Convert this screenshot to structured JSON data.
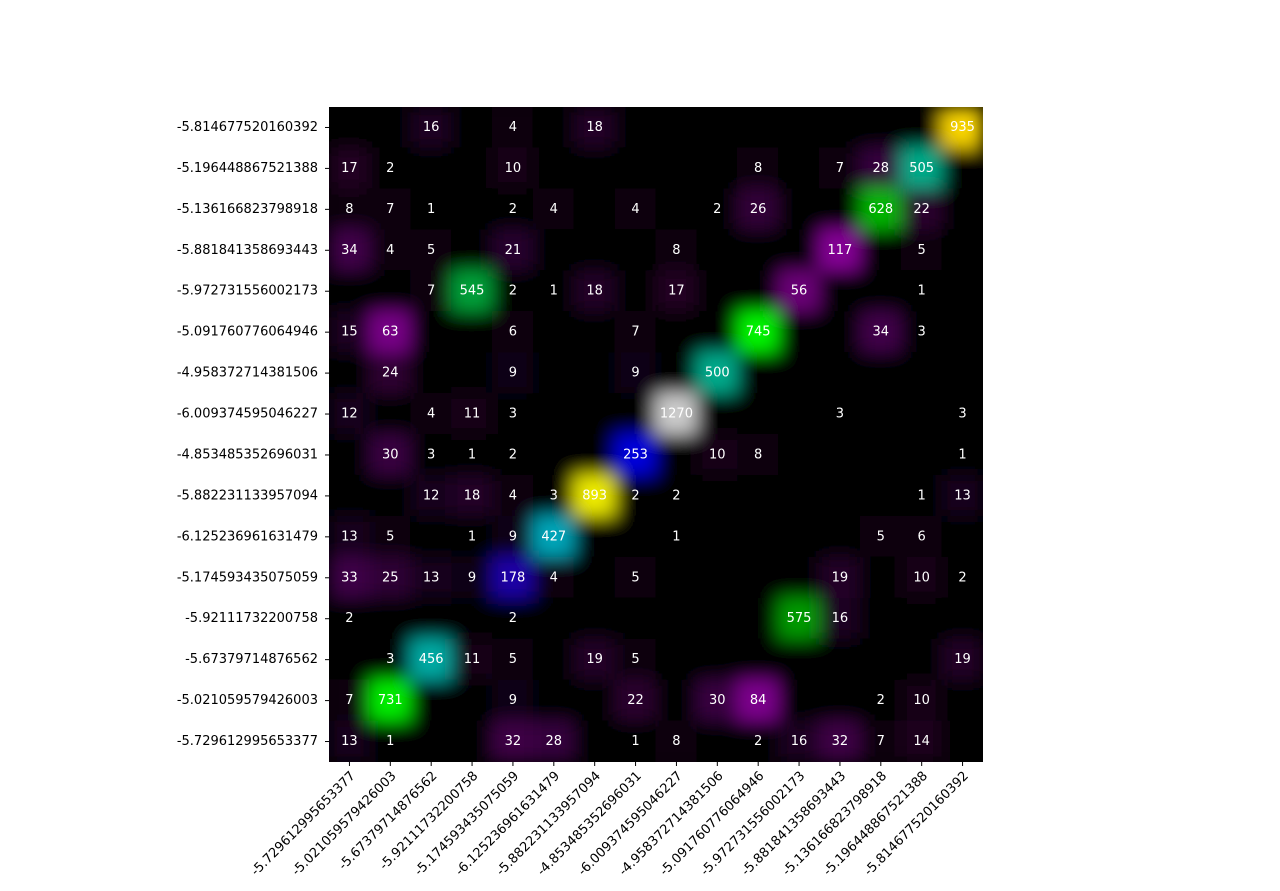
{
  "chart_data": {
    "type": "heatmap",
    "colormap": "nipy_spectral",
    "annotate_nonzero": true,
    "x": [
      "-5.729612995653377",
      "-5.021059579426003",
      "-5.67379714876562",
      "-5.92111732200758",
      "-5.174593435075059",
      "-6.125236961631479",
      "-5.882231133957094",
      "-4.853485352696031",
      "-6.009374595046227",
      "-4.958372714381506",
      "-5.091760776064946",
      "-5.972731556002173",
      "-5.881841358693443",
      "-5.136166823798918",
      "-5.196448867521388",
      "-5.814677520160392"
    ],
    "y": [
      "-5.814677520160392",
      "-5.196448867521388",
      "-5.136166823798918",
      "-5.881841358693443",
      "-5.972731556002173",
      "-5.091760776064946",
      "-4.958372714381506",
      "-6.009374595046227",
      "-4.853485352696031",
      "-5.882231133957094",
      "-6.125236961631479",
      "-5.174593435075059",
      "-5.92111732200758",
      "-5.67379714876562",
      "-5.021059579426003",
      "-5.729612995653377"
    ],
    "values": [
      [
        0,
        0,
        16,
        0,
        4,
        0,
        18,
        0,
        0,
        0,
        0,
        0,
        0,
        0,
        0,
        935
      ],
      [
        17,
        2,
        0,
        0,
        10,
        0,
        0,
        0,
        0,
        0,
        8,
        0,
        7,
        28,
        505,
        0
      ],
      [
        8,
        7,
        1,
        0,
        2,
        4,
        0,
        4,
        0,
        2,
        26,
        0,
        0,
        628,
        22,
        0
      ],
      [
        34,
        4,
        5,
        0,
        21,
        0,
        0,
        0,
        8,
        0,
        0,
        0,
        117,
        0,
        5,
        0
      ],
      [
        0,
        0,
        7,
        545,
        2,
        1,
        18,
        0,
        17,
        0,
        0,
        56,
        0,
        0,
        1,
        0
      ],
      [
        15,
        63,
        0,
        0,
        6,
        0,
        0,
        7,
        0,
        0,
        745,
        0,
        0,
        34,
        3,
        0
      ],
      [
        0,
        24,
        0,
        0,
        9,
        0,
        0,
        9,
        0,
        500,
        0,
        0,
        0,
        0,
        0,
        0
      ],
      [
        12,
        0,
        4,
        11,
        3,
        0,
        0,
        0,
        1270,
        0,
        0,
        0,
        3,
        0,
        0,
        3
      ],
      [
        0,
        30,
        3,
        1,
        2,
        0,
        0,
        253,
        0,
        10,
        8,
        0,
        0,
        0,
        0,
        1
      ],
      [
        0,
        0,
        12,
        18,
        4,
        3,
        893,
        2,
        2,
        0,
        0,
        0,
        0,
        0,
        1,
        13
      ],
      [
        13,
        5,
        0,
        1,
        9,
        427,
        0,
        0,
        1,
        0,
        0,
        0,
        0,
        5,
        6,
        0
      ],
      [
        33,
        25,
        13,
        9,
        178,
        4,
        0,
        5,
        0,
        0,
        0,
        0,
        19,
        0,
        10,
        2
      ],
      [
        2,
        0,
        0,
        0,
        2,
        0,
        0,
        0,
        0,
        0,
        0,
        575,
        16,
        0,
        0,
        0
      ],
      [
        0,
        3,
        456,
        11,
        5,
        0,
        19,
        5,
        0,
        0,
        0,
        0,
        0,
        0,
        0,
        19
      ],
      [
        7,
        731,
        0,
        0,
        9,
        0,
        0,
        22,
        0,
        30,
        84,
        0,
        0,
        2,
        10,
        0
      ],
      [
        13,
        1,
        0,
        0,
        32,
        28,
        0,
        1,
        8,
        0,
        2,
        16,
        32,
        7,
        14,
        0
      ]
    ]
  }
}
